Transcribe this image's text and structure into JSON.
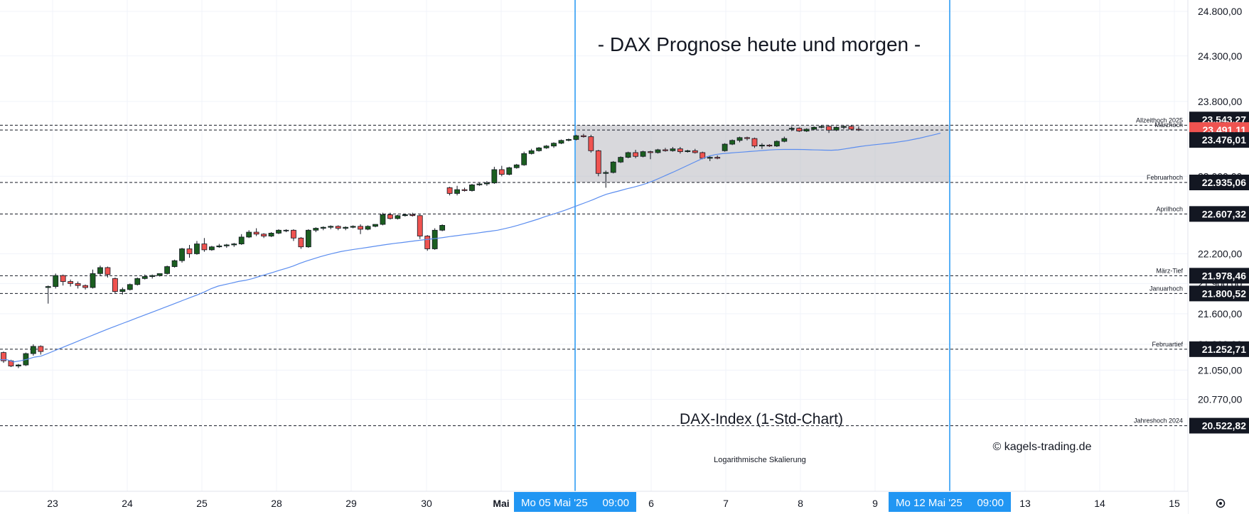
{
  "chart_data": {
    "type": "candlestick",
    "title": "- DAX Prognose heute und morgen -",
    "subtitle": "DAX-Index (1-Std-Chart)",
    "watermark": "© kagels-trading.de",
    "scale_note": "Logarithmische Skalierung",
    "scale": "log",
    "ylim": [
      20450,
      24950
    ],
    "grid": true,
    "y_ticks": [
      "24.800,00",
      "24.300,00",
      "23.800,00",
      "23.000,00",
      "22.200,00",
      "21.900,00",
      "21.600,00",
      "21.300,00",
      "21.050,00",
      "20.770,00"
    ],
    "x_ticks": [
      "23",
      "24",
      "25",
      "28",
      "29",
      "30",
      "Mai",
      "6",
      "7",
      "8",
      "9",
      "13",
      "14",
      "15"
    ],
    "cursors": [
      {
        "label": "Mo 05 Mai '25",
        "time": "09:00"
      },
      {
        "label": "Mo 12 Mai '25",
        "time": "09:00"
      }
    ],
    "levels": [
      {
        "name": "Allzeithoch 2025",
        "value": 23543.27,
        "label": "23.543,27",
        "badge_color": "#131722"
      },
      {
        "name": "Märzhoch",
        "value": 23491.11,
        "label": "23.491,11",
        "badge_color": "#ef5350"
      },
      {
        "name": "",
        "value": 23476.01,
        "label": "23.476,01",
        "badge_color": "#131722"
      },
      {
        "name": "Februarhoch",
        "value": 22935.06,
        "label": "22.935,06",
        "badge_color": "#131722"
      },
      {
        "name": "Aprilhoch",
        "value": 22607.32,
        "label": "22.607,32",
        "badge_color": "#131722"
      },
      {
        "name": "März-Tief",
        "value": 21978.46,
        "label": "21.978,46",
        "badge_color": "#131722"
      },
      {
        "name": "Januarhoch",
        "value": 21800.52,
        "label": "21.800,52",
        "badge_color": "#131722"
      },
      {
        "name": "Februartief",
        "value": 21252.71,
        "label": "21.252,71",
        "badge_color": "#131722"
      },
      {
        "name": "Jahreshoch 2024",
        "value": 20522.82,
        "label": "20.522,82",
        "badge_color": "#131722"
      }
    ],
    "range_box": {
      "from_value": 22935.06,
      "to_value": 23543.27
    },
    "candles": [
      [
        21220,
        21230,
        21120,
        21140
      ],
      [
        21140,
        21150,
        21080,
        21090
      ],
      [
        21090,
        21110,
        21070,
        21100
      ],
      [
        21100,
        21220,
        21090,
        21210
      ],
      [
        21210,
        21300,
        21190,
        21280
      ],
      [
        21280,
        21290,
        21200,
        21230
      ],
      [
        21860,
        21880,
        21700,
        21870
      ],
      [
        21870,
        22000,
        21850,
        21980
      ],
      [
        21980,
        21990,
        21880,
        21920
      ],
      [
        21920,
        21940,
        21870,
        21900
      ],
      [
        21900,
        21920,
        21850,
        21880
      ],
      [
        21880,
        21890,
        21840,
        21860
      ],
      [
        21860,
        22040,
        21850,
        22000
      ],
      [
        22000,
        22080,
        21980,
        22060
      ],
      [
        22060,
        22070,
        21960,
        21990
      ],
      [
        21950,
        21960,
        21800,
        21820
      ],
      [
        21820,
        21860,
        21790,
        21840
      ],
      [
        21840,
        21900,
        21830,
        21890
      ],
      [
        21890,
        21960,
        21880,
        21950
      ],
      [
        21950,
        21990,
        21940,
        21970
      ],
      [
        21970,
        21990,
        21950,
        21980
      ],
      [
        21980,
        22000,
        21970,
        22000
      ],
      [
        22000,
        22080,
        21990,
        22070
      ],
      [
        22070,
        22140,
        22060,
        22130
      ],
      [
        22130,
        22260,
        22110,
        22250
      ],
      [
        22250,
        22290,
        22160,
        22200
      ],
      [
        22200,
        22330,
        22190,
        22300
      ],
      [
        22300,
        22360,
        22220,
        22240
      ],
      [
        22240,
        22280,
        22230,
        22270
      ],
      [
        22270,
        22300,
        22260,
        22280
      ],
      [
        22280,
        22300,
        22260,
        22290
      ],
      [
        22290,
        22310,
        22270,
        22300
      ],
      [
        22300,
        22400,
        22290,
        22370
      ],
      [
        22370,
        22440,
        22360,
        22420
      ],
      [
        22420,
        22460,
        22380,
        22400
      ],
      [
        22400,
        22410,
        22360,
        22380
      ],
      [
        22380,
        22420,
        22370,
        22410
      ],
      [
        22410,
        22450,
        22400,
        22440
      ],
      [
        22440,
        22450,
        22420,
        22440
      ],
      [
        22440,
        22450,
        22330,
        22360
      ],
      [
        22360,
        22370,
        22250,
        22270
      ],
      [
        22270,
        22450,
        22260,
        22440
      ],
      [
        22440,
        22470,
        22420,
        22460
      ],
      [
        22460,
        22480,
        22440,
        22470
      ],
      [
        22470,
        22490,
        22450,
        22480
      ],
      [
        22480,
        22490,
        22440,
        22460
      ],
      [
        22460,
        22480,
        22440,
        22470
      ],
      [
        22470,
        22490,
        22460,
        22480
      ],
      [
        22480,
        22500,
        22400,
        22450
      ],
      [
        22450,
        22490,
        22440,
        22480
      ],
      [
        22480,
        22500,
        22470,
        22500
      ],
      [
        22500,
        22620,
        22490,
        22600
      ],
      [
        22600,
        22620,
        22550,
        22560
      ],
      [
        22560,
        22600,
        22550,
        22590
      ],
      [
        22590,
        22610,
        22580,
        22600
      ],
      [
        22600,
        22620,
        22580,
        22590
      ],
      [
        22590,
        22600,
        22350,
        22380
      ],
      [
        22380,
        22390,
        22230,
        22250
      ],
      [
        22250,
        22460,
        22240,
        22440
      ],
      [
        22440,
        22500,
        22430,
        22490
      ],
      [
        22880,
        22890,
        22800,
        22820
      ],
      [
        22820,
        22900,
        22800,
        22860
      ],
      [
        22860,
        22880,
        22840,
        22850
      ],
      [
        22850,
        22920,
        22840,
        22910
      ],
      [
        22910,
        22930,
        22900,
        22920
      ],
      [
        22920,
        22950,
        22900,
        22930
      ],
      [
        22930,
        23100,
        22920,
        23070
      ],
      [
        23070,
        23110,
        23000,
        23020
      ],
      [
        23020,
        23100,
        23010,
        23090
      ],
      [
        23090,
        23130,
        23080,
        23120
      ],
      [
        23120,
        23260,
        23110,
        23240
      ],
      [
        23240,
        23290,
        23230,
        23270
      ],
      [
        23270,
        23310,
        23260,
        23300
      ],
      [
        23300,
        23330,
        23290,
        23320
      ],
      [
        23320,
        23360,
        23300,
        23350
      ],
      [
        23350,
        23390,
        23340,
        23380
      ],
      [
        23380,
        23400,
        23370,
        23390
      ],
      [
        23390,
        23440,
        23380,
        23430
      ],
      [
        23430,
        23450,
        23410,
        23420
      ],
      [
        23420,
        23440,
        23250,
        23270
      ],
      [
        23270,
        23280,
        23000,
        23030
      ],
      [
        23030,
        23060,
        22880,
        23040
      ],
      [
        23040,
        23160,
        23030,
        23150
      ],
      [
        23150,
        23210,
        23140,
        23200
      ],
      [
        23200,
        23260,
        23190,
        23250
      ],
      [
        23250,
        23280,
        23190,
        23210
      ],
      [
        23210,
        23270,
        23200,
        23260
      ],
      [
        23260,
        23270,
        23180,
        23250
      ],
      [
        23250,
        23290,
        23240,
        23280
      ],
      [
        23280,
        23300,
        23260,
        23270
      ],
      [
        23270,
        23310,
        23260,
        23290
      ],
      [
        23290,
        23310,
        23240,
        23260
      ],
      [
        23260,
        23280,
        23250,
        23270
      ],
      [
        23270,
        23290,
        23240,
        23250
      ],
      [
        23250,
        23260,
        23180,
        23190
      ],
      [
        23190,
        23220,
        23160,
        23200
      ],
      [
        23200,
        23220,
        23180,
        23190
      ],
      [
        23270,
        23350,
        23260,
        23340
      ],
      [
        23340,
        23390,
        23330,
        23380
      ],
      [
        23380,
        23420,
        23360,
        23410
      ],
      [
        23410,
        23420,
        23380,
        23400
      ],
      [
        23400,
        23410,
        23300,
        23320
      ],
      [
        23320,
        23350,
        23290,
        23330
      ],
      [
        23330,
        23340,
        23310,
        23320
      ],
      [
        23320,
        23380,
        23310,
        23370
      ],
      [
        23370,
        23420,
        23360,
        23400
      ],
      [
        23500,
        23530,
        23480,
        23510
      ],
      [
        23510,
        23520,
        23470,
        23480
      ],
      [
        23480,
        23510,
        23470,
        23500
      ],
      [
        23500,
        23530,
        23490,
        23520
      ],
      [
        23520,
        23540,
        23510,
        23530
      ],
      [
        23530,
        23540,
        23460,
        23490
      ],
      [
        23490,
        23530,
        23480,
        23520
      ],
      [
        23520,
        23540,
        23500,
        23530
      ],
      [
        23530,
        23543,
        23490,
        23500
      ],
      [
        23500,
        23530,
        23480,
        23491
      ]
    ],
    "moving_average": [
      21151,
      21151,
      21130,
      21140,
      21155,
      21175,
      21185,
      21211,
      21238,
      21265,
      21292,
      21319,
      21346,
      21373,
      21400,
      21427,
      21454,
      21479,
      21505,
      21530,
      21556,
      21581,
      21607,
      21632,
      21658,
      21684,
      21710,
      21736,
      21762,
      21788,
      21816,
      21849,
      21874,
      21890,
      21905,
      21921,
      21932,
      21948,
      21970,
      21991,
      22011,
      22033,
      22053,
      22075,
      22103,
      22127,
      22148,
      22170,
      22189,
      22206,
      22222,
      22234,
      22245,
      22255,
      22265,
      22276,
      22287,
      22297,
      22306,
      22314,
      22323,
      22332,
      22340,
      22348,
      22356,
      22365,
      22375,
      22384,
      22393,
      22402,
      22411,
      22421,
      22430,
      22440,
      22455,
      22472,
      22491,
      22512,
      22533,
      22555,
      22580,
      22601,
      22624,
      22648,
      22675,
      22701,
      22728,
      22755,
      22785,
      22812,
      22831,
      22850,
      22870,
      22886,
      22906,
      22928,
      22956,
      22987,
      23019,
      23051,
      23084,
      23118,
      23152,
      23185,
      23212,
      23229,
      23239,
      23245,
      23251,
      23256,
      23262,
      23267,
      23273,
      23278,
      23282,
      23284,
      23284,
      23284,
      23283,
      23280,
      23278,
      23276,
      23275,
      23279,
      23290,
      23302,
      23313,
      23323,
      23331,
      23339,
      23347,
      23355,
      23365,
      23376,
      23390,
      23405,
      23422,
      23440,
      23457
    ]
  }
}
